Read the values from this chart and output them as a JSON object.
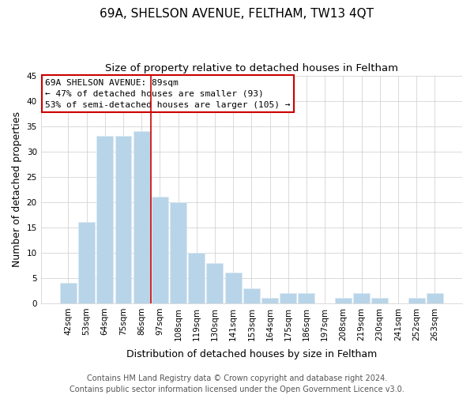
{
  "title": "69A, SHELSON AVENUE, FELTHAM, TW13 4QT",
  "subtitle": "Size of property relative to detached houses in Feltham",
  "xlabel": "Distribution of detached houses by size in Feltham",
  "ylabel": "Number of detached properties",
  "bar_labels": [
    "42sqm",
    "53sqm",
    "64sqm",
    "75sqm",
    "86sqm",
    "97sqm",
    "108sqm",
    "119sqm",
    "130sqm",
    "141sqm",
    "153sqm",
    "164sqm",
    "175sqm",
    "186sqm",
    "197sqm",
    "208sqm",
    "219sqm",
    "230sqm",
    "241sqm",
    "252sqm",
    "263sqm"
  ],
  "bar_values": [
    4,
    16,
    33,
    33,
    34,
    21,
    20,
    10,
    8,
    6,
    3,
    1,
    2,
    2,
    0,
    1,
    2,
    1,
    0,
    1,
    2
  ],
  "bar_color": "#b8d4e8",
  "bar_edge_color": "#dce9f3",
  "grid_color": "#cccccc",
  "ylim": [
    0,
    45
  ],
  "yticks": [
    0,
    5,
    10,
    15,
    20,
    25,
    30,
    35,
    40,
    45
  ],
  "annotation_line1": "69A SHELSON AVENUE: 89sqm",
  "annotation_line2": "← 47% of detached houses are smaller (93)",
  "annotation_line3": "53% of semi-detached houses are larger (105) →",
  "annotation_box_edge": "#cc0000",
  "vline_x": 4.5,
  "vline_color": "#cc0000",
  "footer_line1": "Contains HM Land Registry data © Crown copyright and database right 2024.",
  "footer_line2": "Contains public sector information licensed under the Open Government Licence v3.0.",
  "title_fontsize": 11,
  "subtitle_fontsize": 9.5,
  "tick_fontsize": 7.5,
  "label_fontsize": 9,
  "annotation_fontsize": 8,
  "footer_fontsize": 7
}
